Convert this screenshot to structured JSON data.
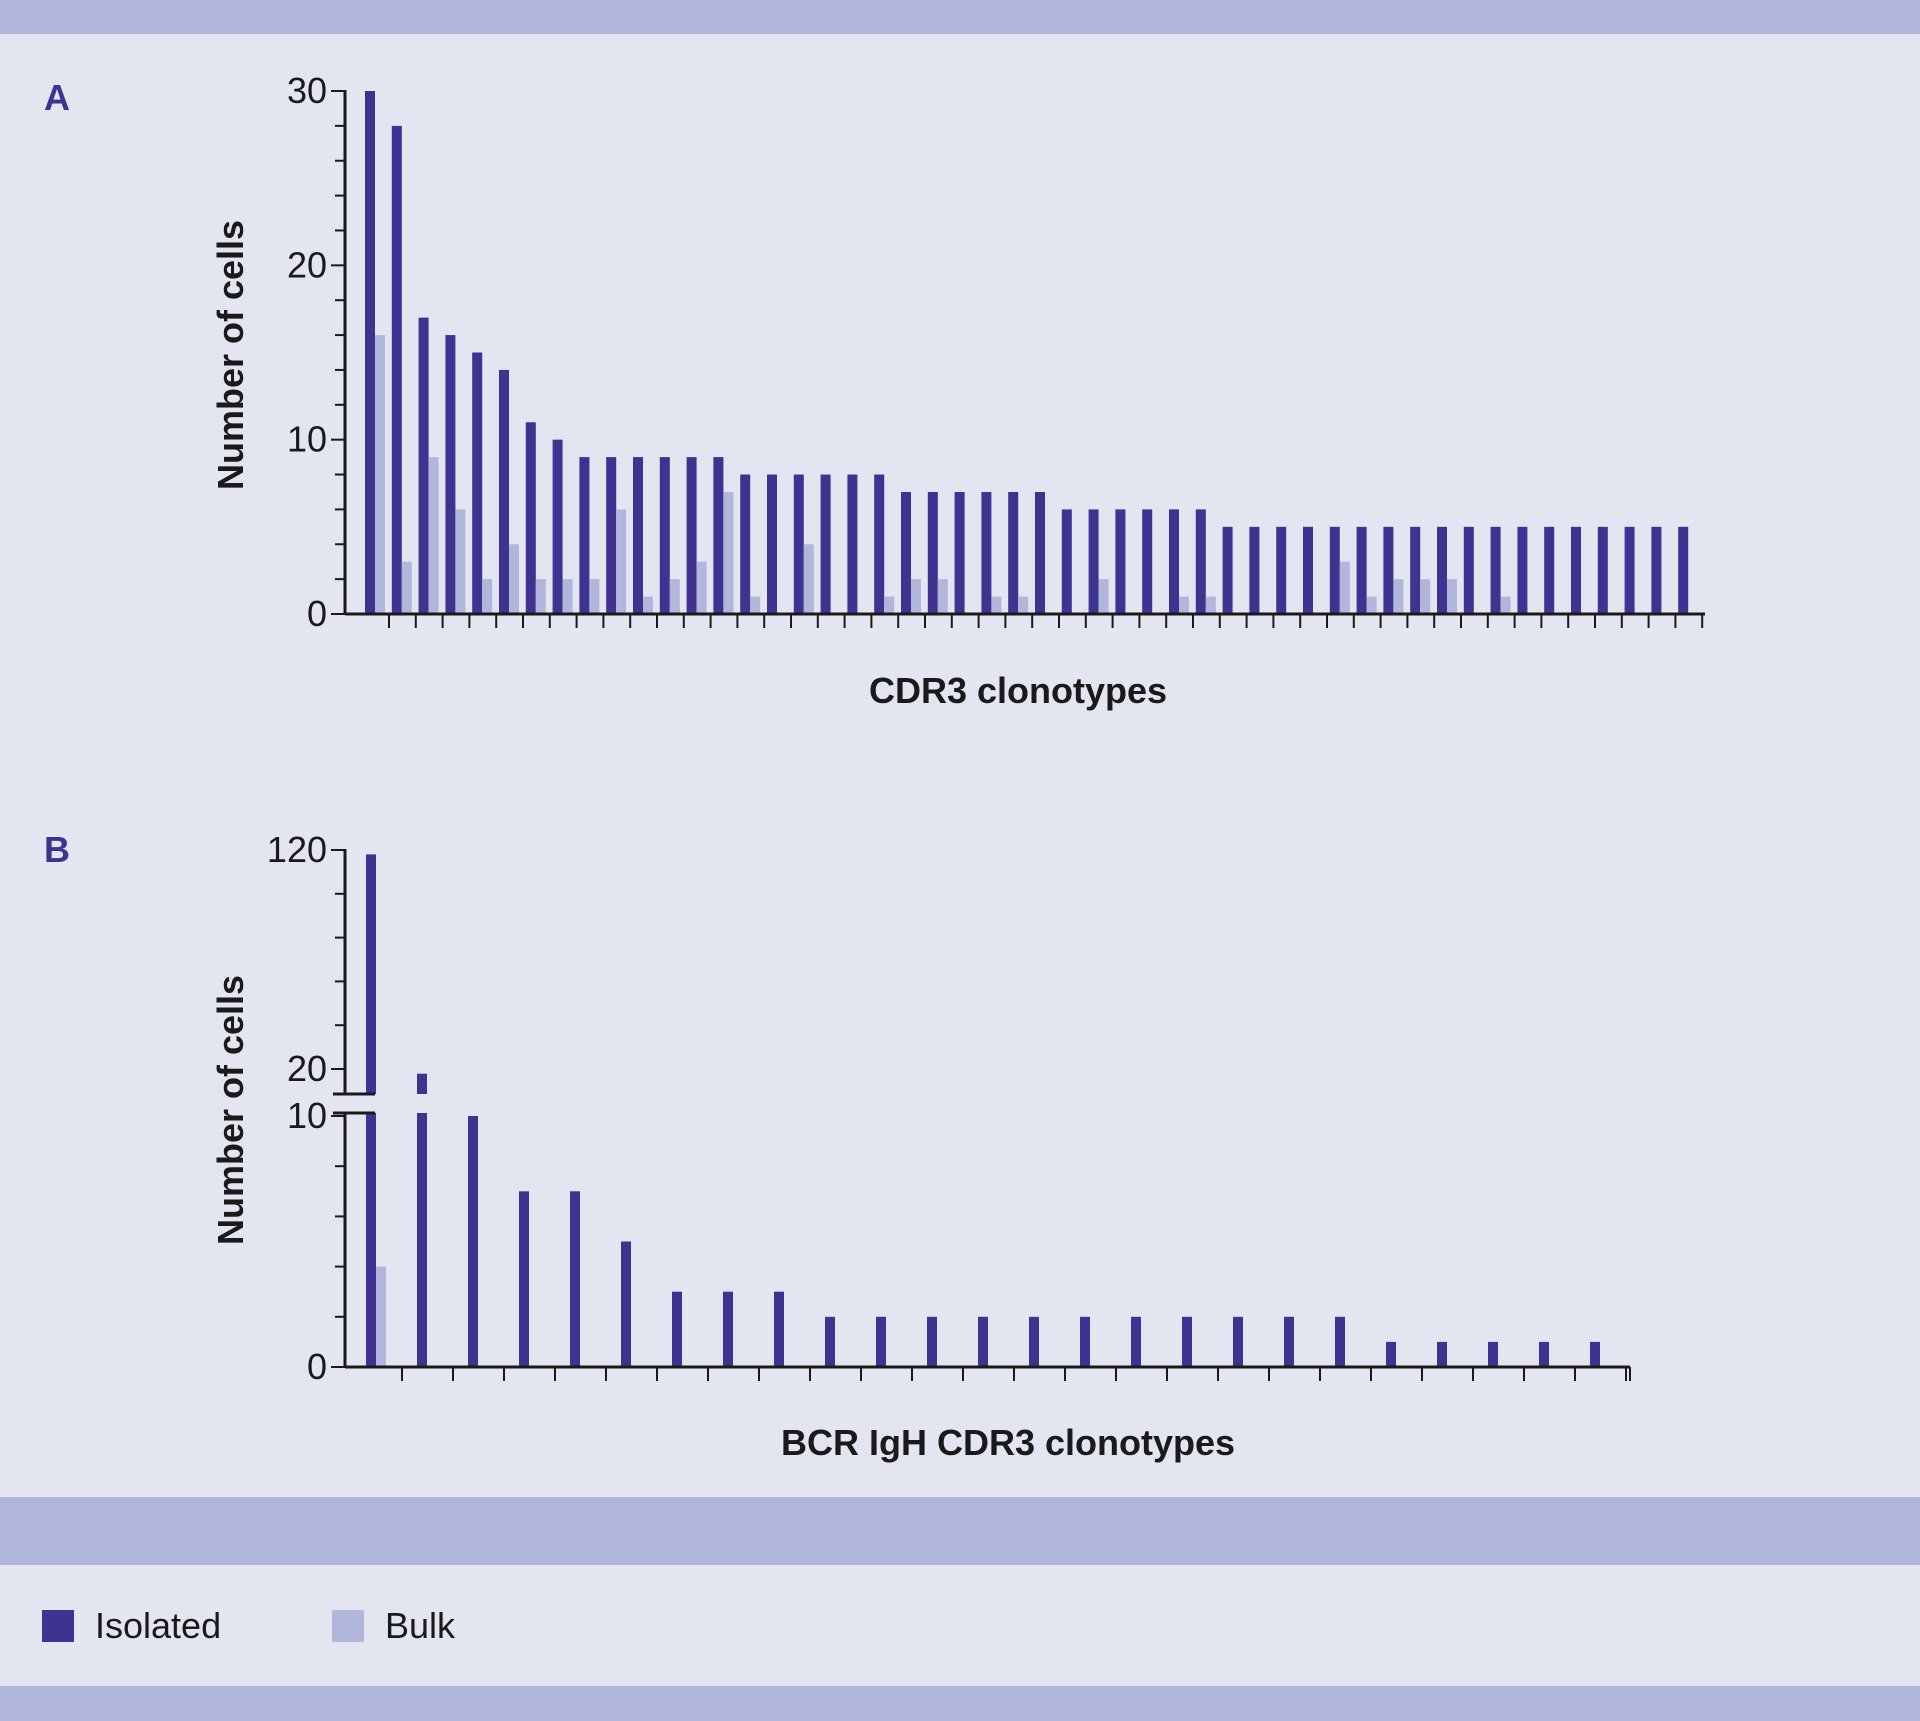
{
  "colors": {
    "isolated": "#3e3390",
    "bulk": "#b0b7db",
    "band": "#b0b7db",
    "background": "#e3e5f1",
    "panel_label": "#3e3390",
    "text": "#1a1a1a"
  },
  "legend": {
    "isolated": "Isolated",
    "bulk": "Bulk"
  },
  "chart_data": [
    {
      "panel": "A",
      "type": "bar",
      "xlabel": "CDR3 clonotypes",
      "ylabel": "Number of cells",
      "ylim": [
        0,
        30
      ],
      "yticks": [
        "0",
        "10",
        "20",
        "30"
      ],
      "series": [
        {
          "name": "Isolated",
          "values": [
            30,
            28,
            17,
            16,
            15,
            14,
            11,
            10,
            9,
            9,
            9,
            9,
            9,
            9,
            8,
            8,
            8,
            8,
            8,
            8,
            7,
            7,
            7,
            7,
            7,
            7,
            6,
            6,
            6,
            6,
            6,
            6,
            5,
            5,
            5,
            5,
            5,
            5,
            5,
            5,
            5,
            5,
            5,
            5,
            5,
            5,
            5,
            5,
            5,
            5
          ]
        },
        {
          "name": "Bulk",
          "values": [
            16,
            3,
            9,
            6,
            2,
            4,
            2,
            2,
            2,
            6,
            1,
            2,
            3,
            7,
            1,
            0,
            4,
            0,
            0,
            1,
            2,
            2,
            0,
            1,
            1,
            0,
            0,
            2,
            0,
            0,
            1,
            1,
            0,
            0,
            0,
            0,
            3,
            1,
            2,
            2,
            2,
            0,
            1,
            0,
            0,
            0,
            0,
            0,
            0,
            0
          ]
        }
      ]
    },
    {
      "panel": "B",
      "type": "bar",
      "xlabel": "BCR IgH CDR3 clonotypes",
      "ylabel": "Number of cells",
      "axis_break": true,
      "ylim_lower": [
        0,
        10
      ],
      "ylim_upper": [
        20,
        120
      ],
      "yticks": [
        "0",
        "10",
        "20",
        "120"
      ],
      "series": [
        {
          "name": "Isolated",
          "values": [
            118,
            19,
            10,
            7,
            7,
            5,
            3,
            3,
            3,
            2,
            2,
            2,
            2,
            2,
            2,
            2,
            2,
            2,
            2,
            2,
            1,
            1,
            1,
            1,
            1
          ]
        },
        {
          "name": "Bulk",
          "values": [
            4,
            0,
            0,
            0,
            0,
            0,
            0,
            0,
            0,
            0,
            0,
            0,
            0,
            0,
            0,
            0,
            0,
            0,
            0,
            0,
            0,
            0,
            0,
            0,
            0
          ]
        }
      ]
    }
  ]
}
